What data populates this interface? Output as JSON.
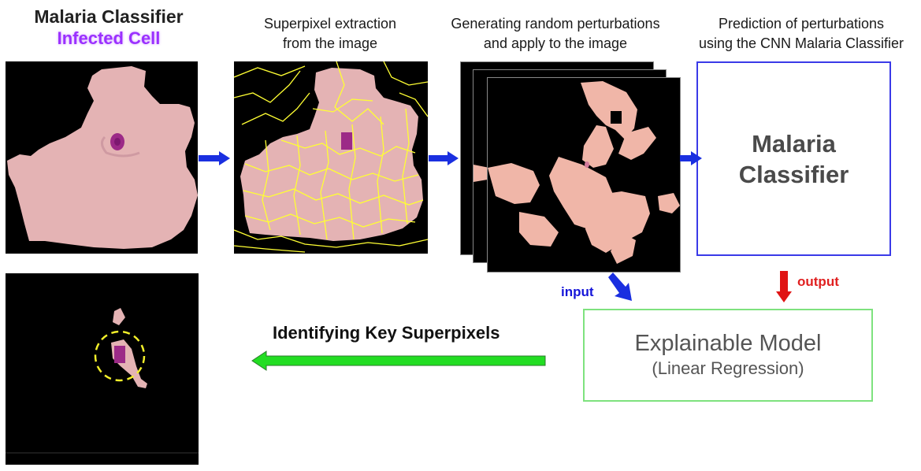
{
  "header": {
    "title": "Malaria Classifier",
    "subtitle": "Infected Cell"
  },
  "steps": {
    "superpixel": [
      "Superpixel extraction",
      "from the image"
    ],
    "perturb": [
      "Generating random perturbations",
      "and apply to the image"
    ],
    "predict": [
      "Prediction of perturbations",
      "using the CNN Malaria Classifier"
    ]
  },
  "classifier": {
    "line1": "Malaria",
    "line2": "Classifier"
  },
  "explainable": {
    "title": "Explainable Model",
    "subtitle": "(Linear Regression)"
  },
  "labels": {
    "input": "input",
    "output": "output",
    "key": "Identifying Key Superpixels"
  },
  "colors": {
    "cell": "#e4b3b4",
    "parasite": "#9c2a87",
    "superpixel_line": "#ffff33",
    "perturb_cell": "#f0b6a8",
    "arrow_blue": "#1a2fe0",
    "arrow_red": "#e01414",
    "arrow_green": "#22dd22",
    "box_blue": "#3a3ae8",
    "box_green": "#7ee27e",
    "accent_purple": "#9b30ff"
  }
}
